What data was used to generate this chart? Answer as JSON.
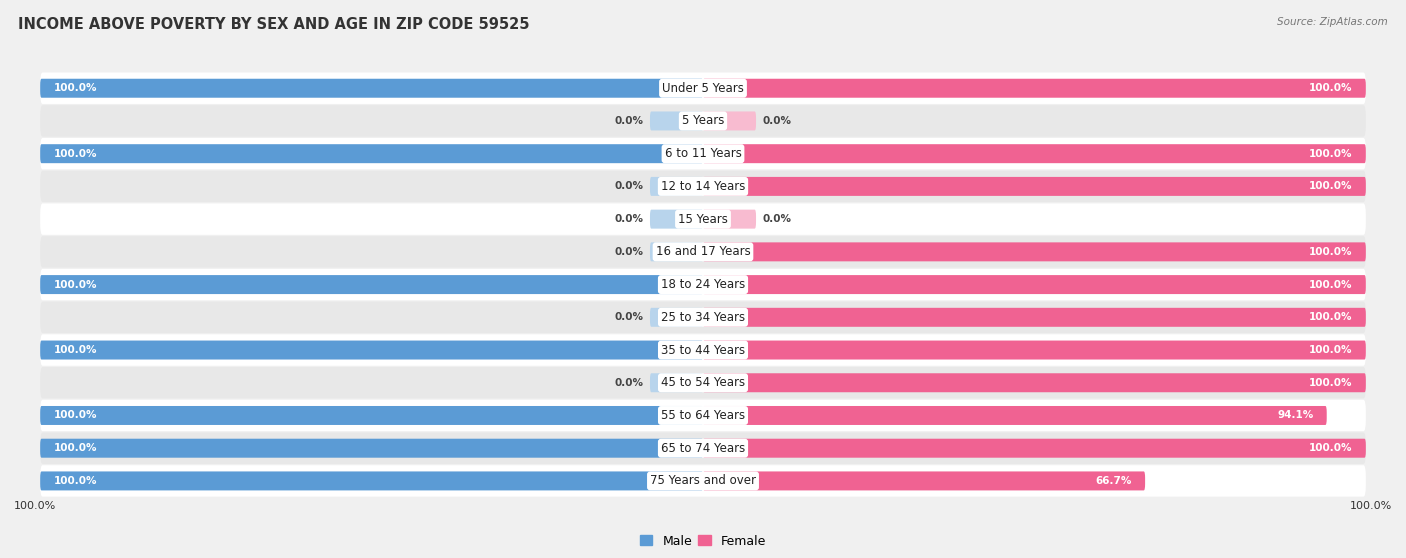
{
  "title": "INCOME ABOVE POVERTY BY SEX AND AGE IN ZIP CODE 59525",
  "source": "Source: ZipAtlas.com",
  "categories": [
    "Under 5 Years",
    "5 Years",
    "6 to 11 Years",
    "12 to 14 Years",
    "15 Years",
    "16 and 17 Years",
    "18 to 24 Years",
    "25 to 34 Years",
    "35 to 44 Years",
    "45 to 54 Years",
    "55 to 64 Years",
    "65 to 74 Years",
    "75 Years and over"
  ],
  "male_values": [
    100.0,
    0.0,
    100.0,
    0.0,
    0.0,
    0.0,
    100.0,
    0.0,
    100.0,
    0.0,
    100.0,
    100.0,
    100.0
  ],
  "female_values": [
    100.0,
    0.0,
    100.0,
    100.0,
    0.0,
    100.0,
    100.0,
    100.0,
    100.0,
    100.0,
    94.1,
    100.0,
    66.7
  ],
  "male_color": "#5b9bd5",
  "female_color": "#f06292",
  "male_color_light": "#b8d4ec",
  "female_color_light": "#f8bbd0",
  "bg_color": "#f0f0f0",
  "row_color_odd": "#ffffff",
  "row_color_even": "#e8e8e8",
  "title_fontsize": 10.5,
  "label_fontsize": 8.5,
  "value_fontsize": 7.5,
  "bar_height": 0.58,
  "stub_size": 8.0
}
